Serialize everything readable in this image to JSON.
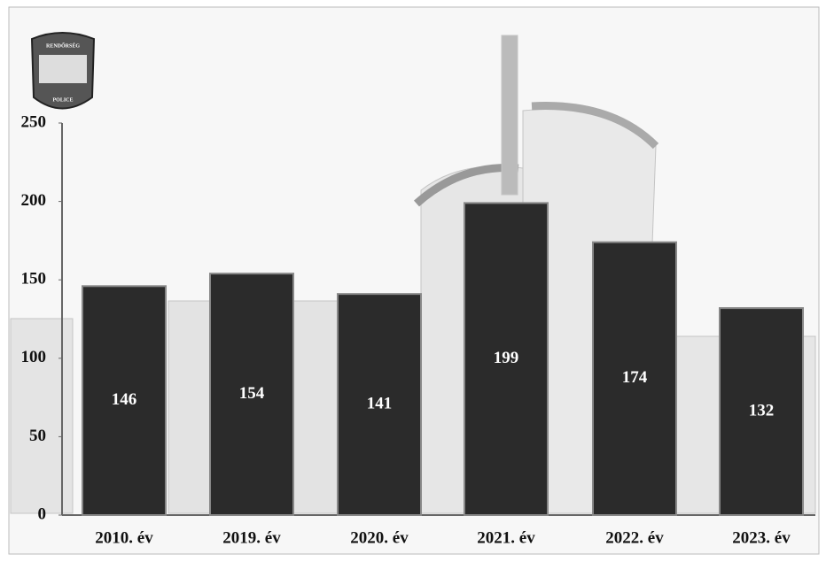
{
  "badge": {
    "top": "RENDŐRSÉG",
    "bottom": "POLICE"
  },
  "chart_data": {
    "type": "bar",
    "categories": [
      "2010. év",
      "2019. év",
      "2020. év",
      "2021. év",
      "2022. év",
      "2023. év"
    ],
    "values": [
      146,
      154,
      141,
      199,
      174,
      132
    ],
    "color": "#2b2b2b",
    "ylim": [
      0,
      250
    ],
    "yticks": [
      0,
      50,
      100,
      150,
      200,
      250
    ],
    "grid": false
  }
}
